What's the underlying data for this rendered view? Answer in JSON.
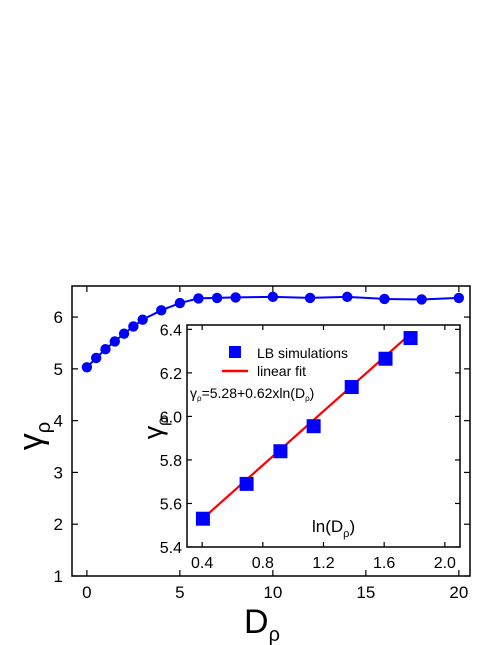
{
  "chart_data": [
    {
      "type": "line",
      "xlabel": "D",
      "xlabel_sub": "ρ",
      "ylabel": "γ",
      "ylabel_sub": "ρ",
      "xlim": [
        -0.8,
        20.6
      ],
      "ylim": [
        1,
        6.6
      ],
      "xticks": [
        "0",
        "5",
        "10",
        "15",
        "20"
      ],
      "yticks": [
        "1",
        "2",
        "3",
        "4",
        "5",
        "6"
      ],
      "color": "#0000ff",
      "series": [
        {
          "x": [
            0,
            0.5,
            1,
            1.5,
            2,
            2.5,
            3,
            4,
            5,
            6,
            7,
            8,
            10,
            12,
            14,
            16,
            18,
            20
          ],
          "values": [
            5.03,
            5.21,
            5.38,
            5.53,
            5.68,
            5.82,
            5.95,
            6.13,
            6.27,
            6.36,
            6.37,
            6.38,
            6.39,
            6.37,
            6.39,
            6.35,
            6.34,
            6.37
          ]
        }
      ]
    },
    {
      "type": "scatter",
      "xlabel": "ln(D",
      "xlabel_sub": "ρ",
      "xlabel_end": ")",
      "ylabel": "γ",
      "ylabel_sub": "ρ",
      "xlim": [
        0.3,
        2.1
      ],
      "ylim": [
        5.4,
        6.42
      ],
      "xticks": [
        "0.4",
        "0.8",
        "1.2",
        "1.6",
        "2.0"
      ],
      "yticks": [
        "5.4",
        "5.6",
        "5.8",
        "6.0",
        "6.2",
        "6.4"
      ],
      "series": [
        {
          "name": "LB simulations",
          "color": "#0000ff",
          "x": [
            0.405,
            0.693,
            0.916,
            1.135,
            1.386,
            1.609,
            1.774
          ],
          "values": [
            5.53,
            5.69,
            5.84,
            5.955,
            6.135,
            6.265,
            6.36
          ]
        }
      ],
      "fit": {
        "name": "linear fit",
        "color": "#ff0000",
        "intercept": 5.28,
        "slope": 0.62,
        "x_range": [
          0.4,
          1.78
        ]
      },
      "annotation_main": "γ",
      "annotation_sub": "ρ",
      "annotation_rest": "=5.28+0.62xln(D",
      "annotation_sub2": "ρ",
      "annotation_end": ")"
    }
  ]
}
